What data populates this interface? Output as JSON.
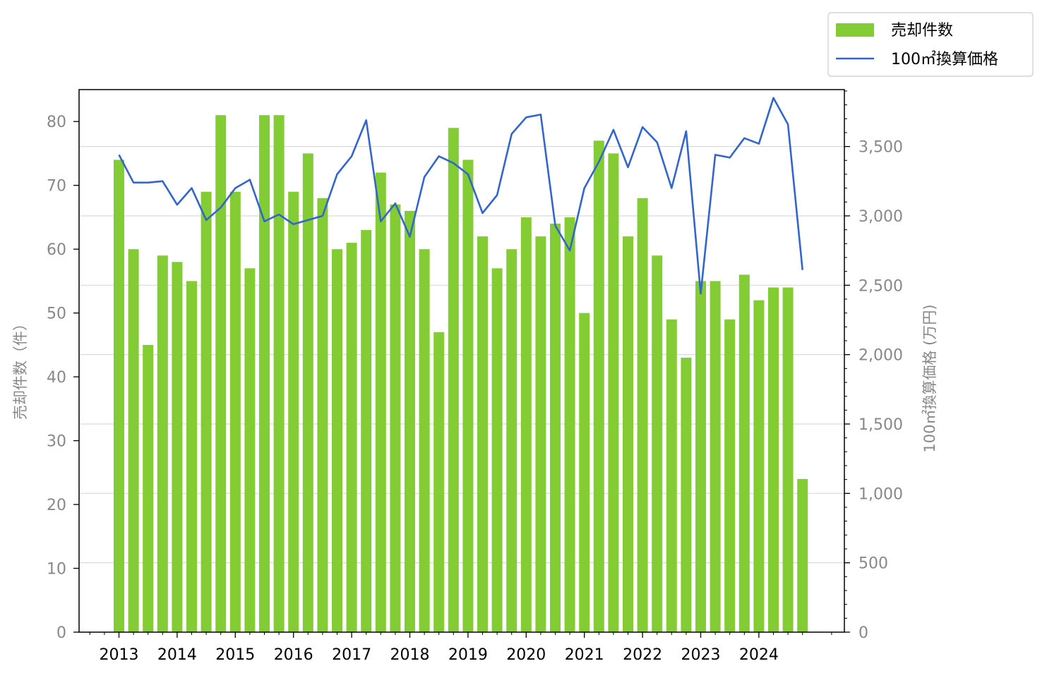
{
  "chart_data": {
    "type": "bar+line",
    "x_tick_labels": [
      "2013",
      "2014",
      "2015",
      "2016",
      "2017",
      "2018",
      "2019",
      "2020",
      "2021",
      "2022",
      "2023",
      "2024"
    ],
    "series": [
      {
        "name": "売却件数",
        "type": "bar",
        "axis": "left",
        "color": "#84cc33",
        "values": [
          74,
          60,
          45,
          59,
          58,
          55,
          69,
          81,
          69,
          57,
          81,
          81,
          69,
          75,
          68,
          60,
          61,
          63,
          72,
          67,
          66,
          60,
          47,
          79,
          74,
          62,
          57,
          60,
          65,
          62,
          64,
          65,
          50,
          77,
          75,
          62,
          68,
          59,
          49,
          43,
          55,
          55,
          49,
          56,
          52,
          54,
          54,
          24
        ]
      },
      {
        "name": "100㎡換算価格",
        "type": "line",
        "axis": "right",
        "color": "#3366cc",
        "values": [
          3440,
          3240,
          3240,
          3250,
          3080,
          3200,
          2970,
          3060,
          3200,
          3260,
          2960,
          3010,
          2940,
          2970,
          3000,
          3300,
          3430,
          3690,
          2960,
          3090,
          2850,
          3280,
          3430,
          3380,
          3300,
          3020,
          3150,
          3590,
          3710,
          3730,
          2930,
          2750,
          3200,
          3390,
          3620,
          3350,
          3640,
          3530,
          3200,
          3610,
          2440,
          3440,
          3420,
          3560,
          3520,
          3850,
          3660,
          2610
        ]
      }
    ],
    "y_left": {
      "label": "売却件数（件）",
      "lim": [
        0,
        85
      ],
      "ticks": [
        0,
        10,
        20,
        30,
        40,
        50,
        60,
        70,
        80
      ]
    },
    "y_right": {
      "label": "100㎡換算価格 (万円)",
      "lim": [
        0,
        3910
      ],
      "ticks": [
        0,
        500,
        1000,
        1500,
        2000,
        2500,
        3000,
        3500
      ],
      "tick_labels": [
        "0",
        "500",
        "1,000",
        "1,500",
        "2,000",
        "2,500",
        "3,000",
        "3,500"
      ]
    },
    "grid": "horizontal (right axis)",
    "legend": {
      "placement": "top-right, outside plot"
    }
  }
}
